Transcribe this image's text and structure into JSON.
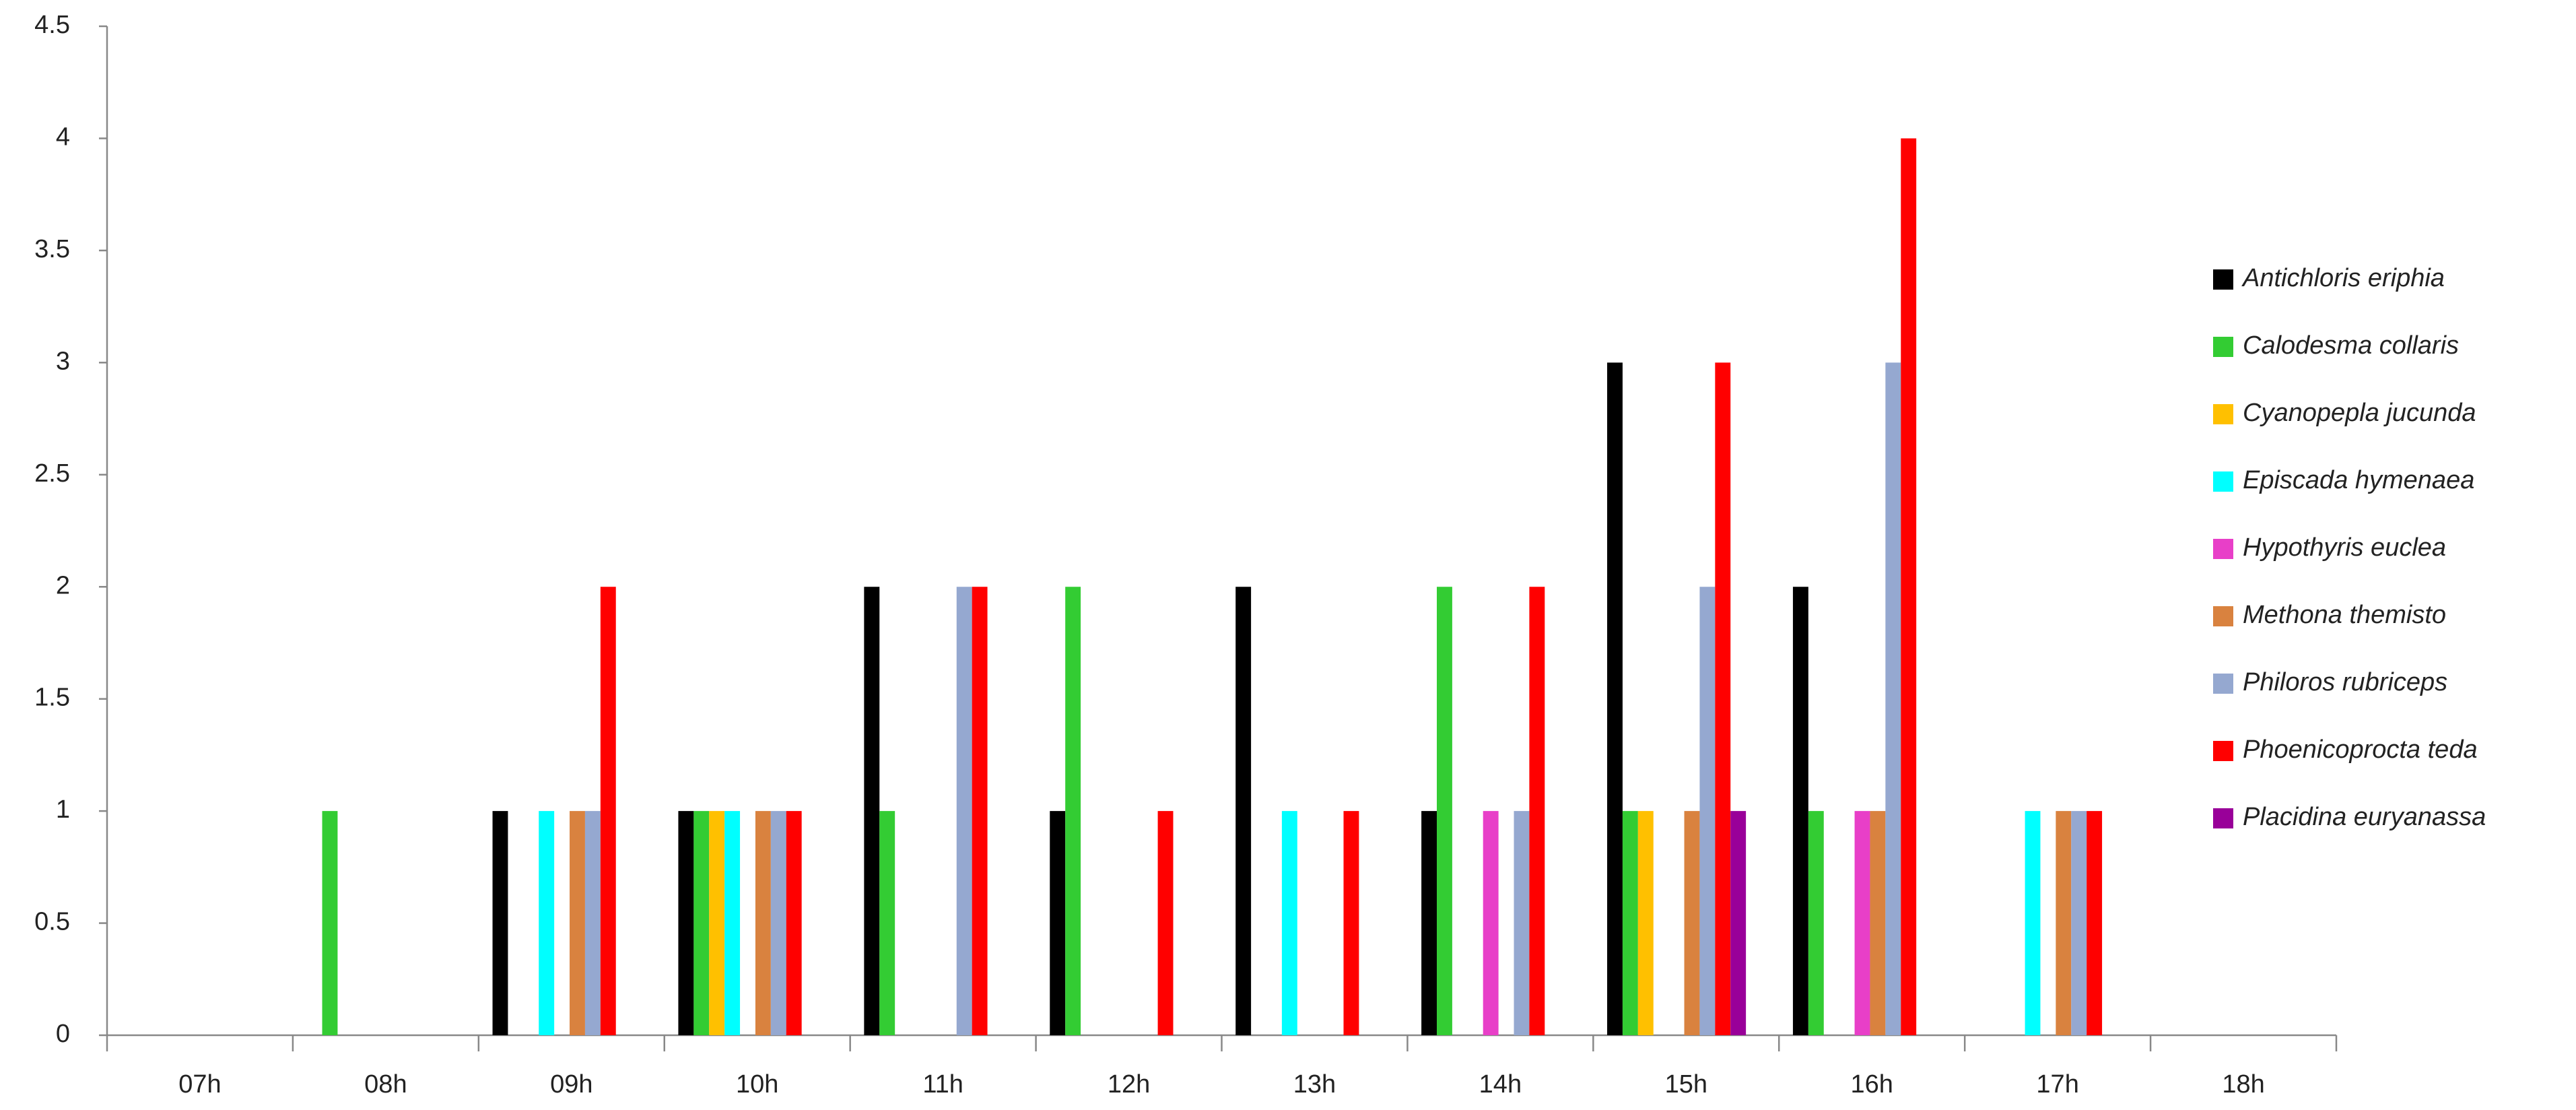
{
  "chart_data": {
    "type": "bar",
    "categories": [
      "07h",
      "08h",
      "09h",
      "10h",
      "11h",
      "12h",
      "13h",
      "14h",
      "15h",
      "16h",
      "17h",
      "18h"
    ],
    "series": [
      {
        "name": "Antichloris eriphia",
        "color": "#000000",
        "values": [
          0,
          0,
          1,
          1,
          2,
          1,
          2,
          1,
          3,
          2,
          0,
          0
        ]
      },
      {
        "name": "Calodesma collaris",
        "color": "#33cc33",
        "values": [
          0,
          1,
          0,
          1,
          1,
          2,
          0,
          2,
          1,
          1,
          0,
          0
        ]
      },
      {
        "name": "Cyanopepla jucunda",
        "color": "#ffc000",
        "values": [
          0,
          0,
          0,
          1,
          0,
          0,
          0,
          0,
          1,
          0,
          0,
          0
        ]
      },
      {
        "name": "Episcada hymenaea",
        "color": "#00ffff",
        "values": [
          0,
          0,
          1,
          1,
          0,
          0,
          1,
          0,
          0,
          0,
          1,
          0
        ]
      },
      {
        "name": "Hypothyris euclea",
        "color": "#e83fc8",
        "values": [
          0,
          0,
          0,
          0,
          0,
          0,
          0,
          1,
          0,
          1,
          0,
          0
        ]
      },
      {
        "name": "Methona themisto",
        "color": "#d9823f",
        "values": [
          0,
          0,
          1,
          1,
          0,
          0,
          0,
          0,
          1,
          1,
          1,
          0
        ]
      },
      {
        "name": "Philoros rubriceps",
        "color": "#95a8d0",
        "values": [
          0,
          0,
          1,
          1,
          2,
          0,
          0,
          1,
          2,
          3,
          1,
          0
        ]
      },
      {
        "name": "Phoenicoprocta teda",
        "color": "#ff0000",
        "values": [
          0,
          0,
          2,
          1,
          2,
          1,
          1,
          2,
          3,
          4,
          1,
          0
        ]
      },
      {
        "name": "Placidina euryanassa",
        "color": "#990099",
        "values": [
          0,
          0,
          0,
          0,
          0,
          0,
          0,
          0,
          1,
          0,
          0,
          0
        ]
      }
    ],
    "ylim": [
      0,
      4.5
    ],
    "yticks": [
      0,
      0.5,
      1,
      1.5,
      2,
      2.5,
      3,
      3.5,
      4,
      4.5
    ],
    "grid": false,
    "legend": "right"
  }
}
